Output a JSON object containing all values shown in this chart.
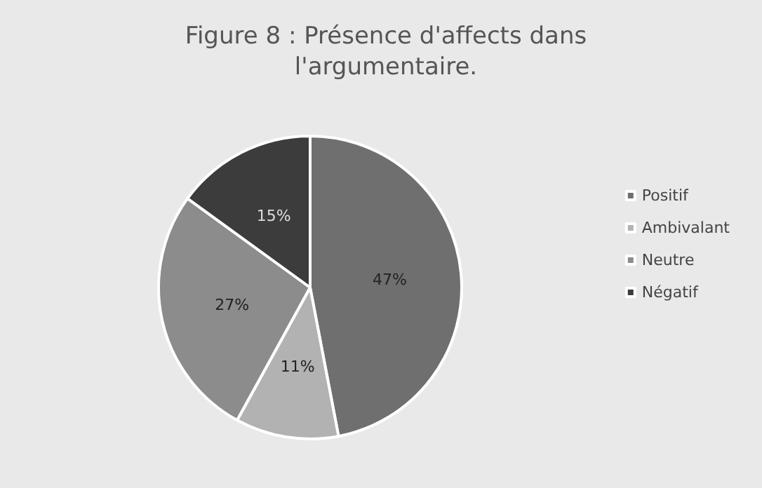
{
  "chart_data": {
    "type": "pie",
    "title": "Figure 8 : Présence d'affects dans\nl'argumentaire.",
    "categories": [
      "Positif",
      "Ambivalant",
      "Neutre",
      "Négatif"
    ],
    "values": [
      47,
      11,
      27,
      15
    ],
    "colors": [
      "#6f6f6f",
      "#b2b2b2",
      "#8c8c8c",
      "#3c3c3c"
    ],
    "value_labels": [
      "47%",
      "11%",
      "27%",
      "15%"
    ],
    "legend": "right"
  }
}
